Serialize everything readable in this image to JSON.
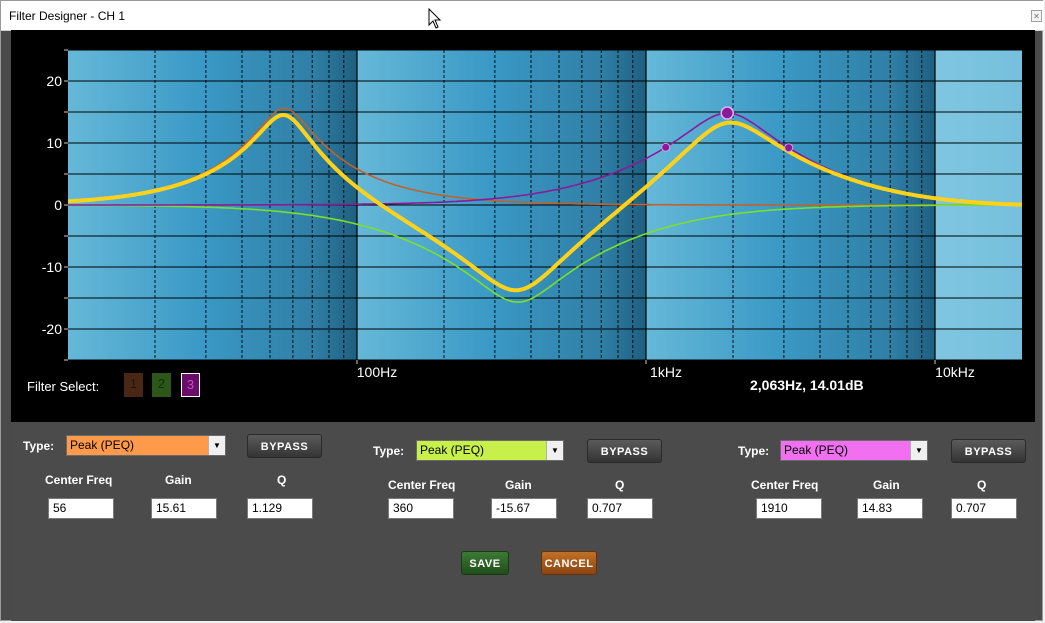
{
  "window": {
    "title": "Filter Designer - CH 1"
  },
  "graph": {
    "y_ticks": [
      "20",
      "10",
      "0",
      "-10",
      "-20"
    ],
    "x_ticks": [
      "100Hz",
      "1kHz",
      "10kHz"
    ],
    "readout": "2,063Hz, 14.01dB",
    "colors": {
      "filter1": "#c0622a",
      "filter2": "#7ae02a",
      "filter3": "#8a1a9a",
      "combined": "#ffd21a"
    }
  },
  "filter_select": {
    "label": "Filter Select:",
    "buttons": [
      "1",
      "2",
      "3"
    ],
    "selected": "3"
  },
  "filters": [
    {
      "type_label": "Type:",
      "type_value": "Peak (PEQ)",
      "type_bg": "#ff9a4a",
      "bypass": "BYPASS",
      "center_freq_label": "Center Freq",
      "gain_label": "Gain",
      "q_label": "Q",
      "center_freq": "56",
      "gain": "15.61",
      "q": "1.129"
    },
    {
      "type_label": "Type:",
      "type_value": "Peak (PEQ)",
      "type_bg": "#c8f04a",
      "bypass": "BYPASS",
      "center_freq_label": "Center Freq",
      "gain_label": "Gain",
      "q_label": "Q",
      "center_freq": "360",
      "gain": "-15.67",
      "q": "0.707"
    },
    {
      "type_label": "Type:",
      "type_value": "Peak (PEQ)",
      "type_bg": "#f070f0",
      "bypass": "BYPASS",
      "center_freq_label": "Center Freq",
      "gain_label": "Gain",
      "q_label": "Q",
      "center_freq": "1910",
      "gain": "14.83",
      "q": "0.707"
    }
  ],
  "actions": {
    "save": "SAVE",
    "cancel": "CANCEL"
  }
}
